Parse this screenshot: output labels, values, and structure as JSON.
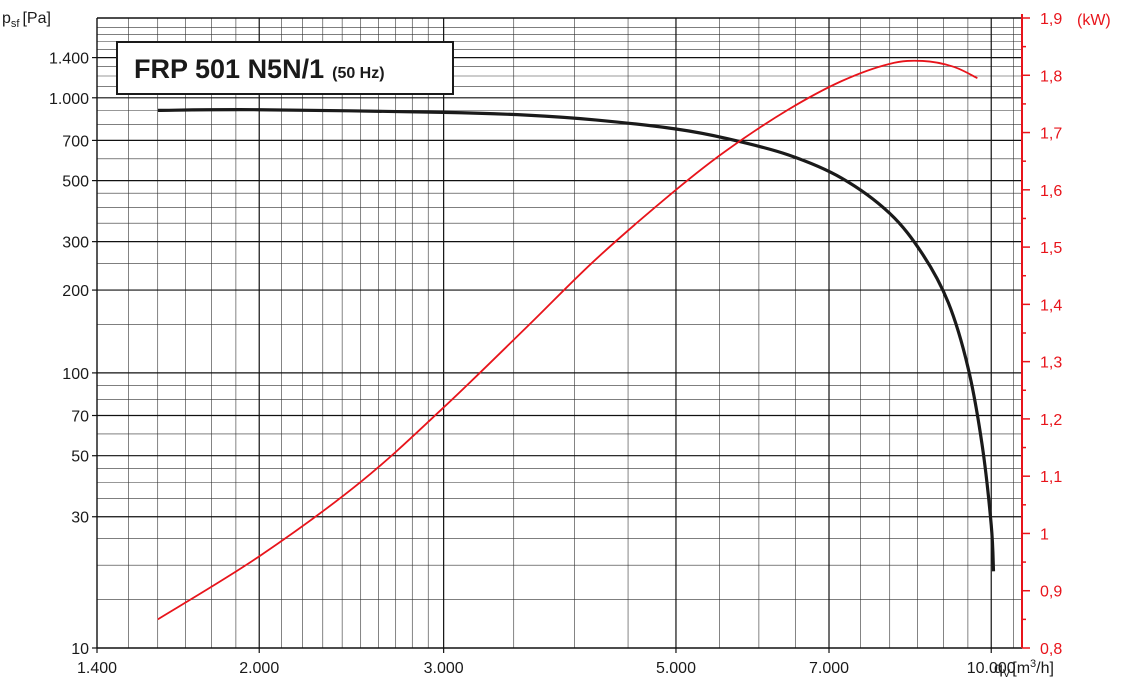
{
  "chart_data": {
    "type": "line",
    "title": "FRP 501 N5N/1",
    "subtitle": "(50 Hz)",
    "x_axis": {
      "label_main": "q",
      "label_sub": "V",
      "label_unit": "[m",
      "label_sup": "3",
      "label_tail": "/h]",
      "scale": "log",
      "range": [
        1400,
        10700
      ],
      "ticks": [
        {
          "value": 1400,
          "label": "1.400"
        },
        {
          "value": 2000,
          "label": "2.000"
        },
        {
          "value": 3000,
          "label": "3.000"
        },
        {
          "value": 5000,
          "label": "5.000"
        },
        {
          "value": 7000,
          "label": "7.000"
        },
        {
          "value": 10000,
          "label": "10.000"
        }
      ]
    },
    "y_axis_left": {
      "label_main": "p",
      "label_sub": "sf",
      "label_unit": "[Pa]",
      "scale": "log",
      "range": [
        10,
        1950
      ],
      "ticks": [
        {
          "value": 10,
          "label": "10"
        },
        {
          "value": 30,
          "label": "30"
        },
        {
          "value": 50,
          "label": "50"
        },
        {
          "value": 70,
          "label": "70"
        },
        {
          "value": 100,
          "label": "100"
        },
        {
          "value": 200,
          "label": "200"
        },
        {
          "value": 300,
          "label": "300"
        },
        {
          "value": 500,
          "label": "500"
        },
        {
          "value": 700,
          "label": "700"
        },
        {
          "value": 1000,
          "label": "1.000"
        },
        {
          "value": 1400,
          "label": "1.400"
        }
      ]
    },
    "y_axis_right": {
      "label": "(kW)",
      "scale": "linear",
      "range": [
        0.8,
        1.9
      ],
      "color": "#e8141b",
      "ticks": [
        {
          "value": 0.8,
          "label": "0,8"
        },
        {
          "value": 0.9,
          "label": "0,9"
        },
        {
          "value": 1.0,
          "label": "1"
        },
        {
          "value": 1.1,
          "label": "1,1"
        },
        {
          "value": 1.2,
          "label": "1,2"
        },
        {
          "value": 1.3,
          "label": "1,3"
        },
        {
          "value": 1.4,
          "label": "1,4"
        },
        {
          "value": 1.5,
          "label": "1,5"
        },
        {
          "value": 1.6,
          "label": "1,6"
        },
        {
          "value": 1.7,
          "label": "1,7"
        },
        {
          "value": 1.8,
          "label": "1,8"
        },
        {
          "value": 1.9,
          "label": "1,9"
        }
      ]
    },
    "grid": true,
    "series": [
      {
        "axis": "left",
        "color": "#1a1a1a",
        "x": [
          1600,
          2000,
          3000,
          3600,
          4200,
          5000,
          5600,
          6400,
          7200,
          8000,
          8600,
          9100,
          9500,
          9800,
          10000,
          10050
        ],
        "y": [
          900,
          905,
          885,
          865,
          830,
          770,
          710,
          620,
          510,
          380,
          270,
          180,
          105,
          55,
          28,
          19
        ]
      },
      {
        "axis": "right",
        "color": "#e8141b",
        "x": [
          1600,
          2000,
          2500,
          3000,
          3600,
          4200,
          5000,
          5600,
          6400,
          7200,
          8000,
          8600,
          9200,
          9700
        ],
        "y": [
          0.85,
          0.96,
          1.09,
          1.22,
          1.36,
          1.48,
          1.6,
          1.67,
          1.74,
          1.79,
          1.82,
          1.825,
          1.815,
          1.795
        ]
      }
    ]
  }
}
